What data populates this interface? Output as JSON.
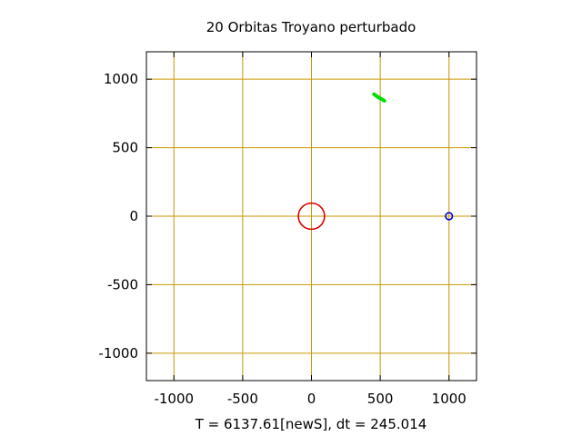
{
  "chart_data": {
    "type": "scatter",
    "title": "20 Orbitas Troyano perturbado",
    "xlabel": "T = 6137.61[newS], dt = 245.014",
    "ylabel": "",
    "xlim": [
      -1200,
      1200
    ],
    "ylim": [
      -1200,
      1200
    ],
    "x_ticks": [
      -1000,
      -500,
      0,
      500,
      1000
    ],
    "y_ticks": [
      -1000,
      -500,
      0,
      500,
      1000
    ],
    "x_tick_labels": [
      "-1000",
      "-500",
      "0",
      "500",
      "1000"
    ],
    "y_tick_labels": [
      "-1000",
      "-500",
      "0",
      "500",
      "1000"
    ],
    "grid": true,
    "grid_color": "#c89600",
    "series": [
      {
        "shape": "circle-outline",
        "color": "#dd0000",
        "center": [
          0,
          0
        ],
        "radius": 95
      },
      {
        "shape": "circle-outline",
        "color": "#0000cc",
        "center": [
          1000,
          0
        ],
        "radius": 25
      },
      {
        "shape": "arc-segment",
        "color": "#00dd00",
        "points": [
          [
            455,
            890
          ],
          [
            480,
            872
          ],
          [
            505,
            857
          ],
          [
            530,
            843
          ]
        ]
      }
    ]
  }
}
